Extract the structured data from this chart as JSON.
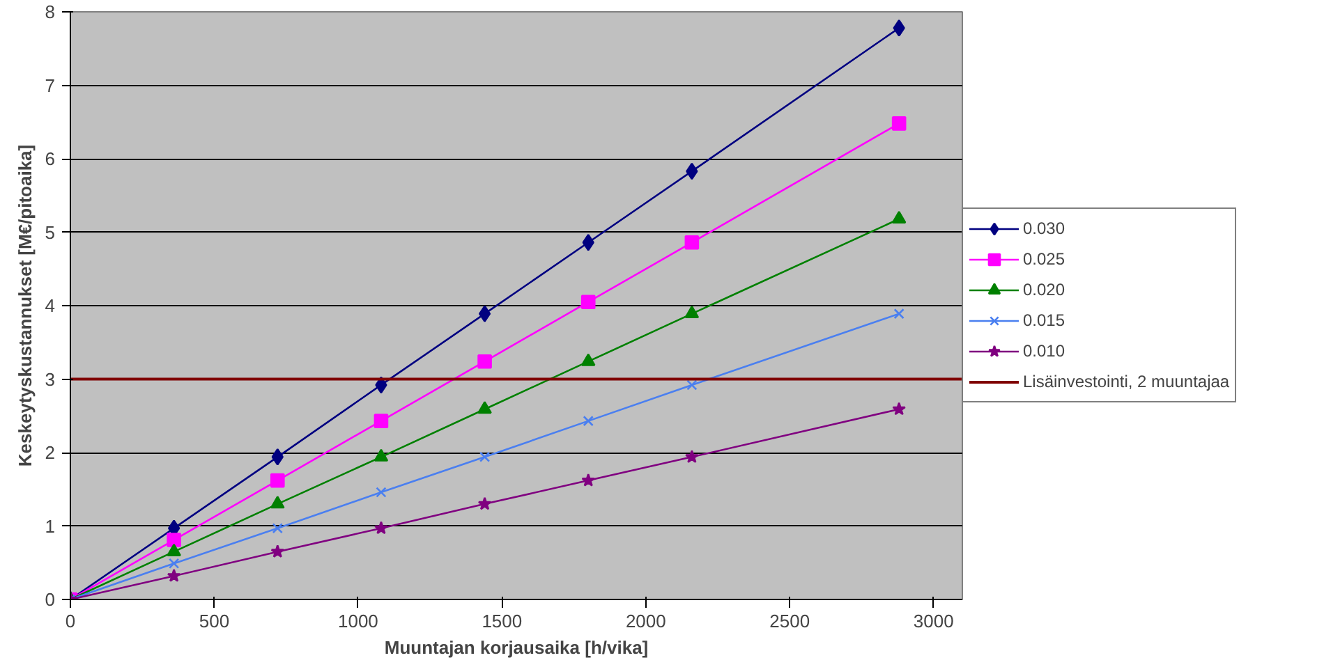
{
  "chart_data": {
    "type": "line",
    "xlabel": "Muuntajan korjausaika [h/vika]",
    "ylabel": "Keskeytyskustannukset [M€/pitoaika]",
    "x": [
      0,
      360,
      720,
      1080,
      1440,
      1800,
      2160,
      2880
    ],
    "series": [
      {
        "name": "0.030",
        "color": "#000080",
        "marker": "diamond",
        "values": [
          0,
          0.97,
          1.94,
          2.92,
          3.89,
          4.86,
          5.83,
          7.78
        ]
      },
      {
        "name": "0.025",
        "color": "#ff00ff",
        "marker": "square",
        "values": [
          0,
          0.81,
          1.62,
          2.43,
          3.24,
          4.05,
          4.86,
          6.48
        ]
      },
      {
        "name": "0.020",
        "color": "#008000",
        "marker": "triangle",
        "values": [
          0,
          0.65,
          1.3,
          1.94,
          2.59,
          3.24,
          3.89,
          5.18
        ]
      },
      {
        "name": "0.015",
        "color": "#4a7ff0",
        "marker": "cross",
        "values": [
          0,
          0.49,
          0.97,
          1.46,
          1.94,
          2.43,
          2.92,
          3.89
        ]
      },
      {
        "name": "0.010",
        "color": "#800080",
        "marker": "star",
        "values": [
          0,
          0.32,
          0.65,
          0.97,
          1.3,
          1.62,
          1.94,
          2.59
        ]
      }
    ],
    "ref_lines": [
      {
        "axis": "y",
        "value": 3,
        "label": "Lisäinvestointi, 2 muuntajaa",
        "color": "#800000"
      }
    ],
    "xlim": [
      0,
      3100
    ],
    "ylim": [
      0,
      8
    ],
    "xticks": [
      0,
      500,
      1000,
      1500,
      2000,
      2500,
      3000
    ],
    "yticks": [
      0,
      1,
      2,
      3,
      4,
      5,
      6,
      7,
      8
    ],
    "grid": "y",
    "legend": "right"
  }
}
